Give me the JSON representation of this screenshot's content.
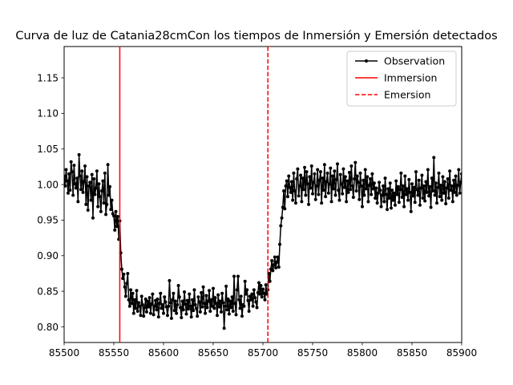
{
  "chart_data": {
    "type": "line",
    "title": "Curva de luz de Catania28cmCon los tiempos de Inmersión y Emersión detectados",
    "xlabel": "",
    "ylabel": "",
    "xlim": [
      85500,
      85900
    ],
    "ylim": [
      0.778,
      1.194
    ],
    "xticks": [
      "85500",
      "85550",
      "85600",
      "85650",
      "85700",
      "85750",
      "85800",
      "85850",
      "85900"
    ],
    "yticks": [
      "0.80",
      "0.85",
      "0.90",
      "0.95",
      "1.00",
      "1.05",
      "1.10",
      "1.15"
    ],
    "grid": false,
    "legend_position": "top-right",
    "series": [
      {
        "name": "Observation",
        "color": "#000000",
        "marker": "point",
        "x_start": 85500,
        "x_step": 1,
        "values": [
          1.012,
          0.998,
          1.021,
          1.005,
          0.988,
          1.015,
          0.992,
          1.032,
          1.018,
          0.985,
          1.027,
          1.001,
          0.995,
          1.009,
          0.976,
          1.042,
          1.012,
          0.993,
          1.019,
          0.989,
          1.004,
          1.026,
          0.972,
          1.011,
          0.964,
          0.998,
          1.003,
          0.978,
          1.014,
          0.953,
          1.008,
          0.986,
          0.995,
          1.019,
          0.969,
          1.001,
          0.983,
          0.962,
          0.991,
          1.005,
          0.974,
          1.016,
          0.958,
          0.972,
          1.028,
          0.985,
          0.997,
          0.965,
          0.978,
          0.959,
          0.956,
          0.936,
          0.962,
          0.941,
          0.955,
          0.923,
          0.949,
          0.904,
          0.881,
          0.868,
          0.874,
          0.856,
          0.843,
          0.861,
          0.875,
          0.838,
          0.829,
          0.852,
          0.833,
          0.847,
          0.819,
          0.838,
          0.826,
          0.851,
          0.822,
          0.834,
          0.829,
          0.816,
          0.843,
          0.831,
          0.815,
          0.827,
          0.839,
          0.821,
          0.836,
          0.828,
          0.841,
          0.819,
          0.832,
          0.846,
          0.817,
          0.829,
          0.837,
          0.824,
          0.839,
          0.814,
          0.833,
          0.847,
          0.826,
          0.831,
          0.819,
          0.842,
          0.835,
          0.828,
          0.816,
          0.829,
          0.865,
          0.834,
          0.812,
          0.838,
          0.847,
          0.823,
          0.836,
          0.819,
          0.831,
          0.858,
          0.842,
          0.827,
          0.813,
          0.836,
          0.824,
          0.849,
          0.832,
          0.818,
          0.837,
          0.825,
          0.846,
          0.829,
          0.814,
          0.838,
          0.823,
          0.852,
          0.831,
          0.826,
          0.815,
          0.842,
          0.835,
          0.821,
          0.848,
          0.828,
          0.856,
          0.833,
          0.819,
          0.844,
          0.827,
          0.836,
          0.851,
          0.822,
          0.838,
          0.829,
          0.854,
          0.826,
          0.841,
          0.833,
          0.816,
          0.845,
          0.828,
          0.836,
          0.821,
          0.847,
          0.834,
          0.798,
          0.829,
          0.857,
          0.824,
          0.839,
          0.818,
          0.836,
          0.827,
          0.842,
          0.822,
          0.871,
          0.833,
          0.817,
          0.852,
          0.871,
          0.838,
          0.826,
          0.843,
          0.815,
          0.831,
          0.829,
          0.864,
          0.846,
          0.852,
          0.837,
          0.822,
          0.843,
          0.838,
          0.846,
          0.829,
          0.852,
          0.841,
          0.835,
          0.827,
          0.848,
          0.862,
          0.846,
          0.858,
          0.842,
          0.853,
          0.847,
          0.838,
          0.859,
          0.846,
          0.852,
          0.875,
          0.864,
          0.881,
          0.893,
          0.879,
          0.887,
          0.898,
          0.883,
          0.891,
          0.898,
          0.884,
          0.916,
          0.942,
          0.953,
          0.968,
          0.991,
          0.966,
          0.998,
          1.005,
          0.983,
          1.012,
          0.996,
          0.989,
          1.004,
          0.978,
          1.016,
          0.991,
          0.974,
          1.008,
          1.022,
          0.984,
          0.998,
          1.013,
          0.976,
          1.009,
          0.993,
          1.024,
          0.985,
          1.018,
          1.001,
          0.972,
          1.011,
          0.995,
          1.026,
          0.987,
          1.003,
          1.015,
          0.979,
          0.998,
          1.021,
          0.986,
          1.006,
          1.018,
          0.974,
          1.009,
          0.992,
          1.028,
          0.983,
          1.004,
          1.016,
          0.988,
          1.001,
          1.023,
          0.976,
          1.012,
          0.994,
          1.019,
          0.985,
          1.007,
          1.029,
          0.992,
          0.978,
          1.014,
          1.001,
          0.987,
          1.022,
          0.996,
          1.011,
          0.976,
          1.005,
          0.989,
          1.017,
          0.993,
          1.026,
          0.998,
          0.982,
          1.008,
          1.031,
          0.991,
          1.012,
          1.003,
          0.979,
          1.016,
          0.998,
          0.969,
          1.006,
          0.985,
          1.021,
          0.994,
          1.011,
          0.976,
          0.999,
          1.008,
          0.986,
          1.015,
          0.994,
          1.002,
          0.981,
          0.995,
          0.974,
          0.988,
          1.003,
          0.992,
          0.969,
          0.985,
          0.998,
          0.976,
          1.009,
          0.986,
          0.965,
          0.994,
          0.981,
          1.002,
          0.967,
          0.992,
          0.978,
          0.988,
          0.971,
          1.005,
          0.986,
          0.997,
          0.975,
          0.993,
          1.016,
          0.982,
          0.998,
          0.969,
          1.012,
          0.986,
          0.994,
          0.978,
          1.007,
          0.989,
          0.962,
          1.001,
          0.984,
          0.996,
          0.975,
          1.018,
          0.993,
          0.985,
          1.006,
          0.971,
          0.995,
          1.013,
          0.981,
          0.998,
          0.977,
          1.004,
          0.989,
          1.021,
          0.984,
          0.997,
          0.968,
          1.009,
          0.991,
          1.038,
          0.985,
          1.002,
          0.974,
          0.996,
          1.016,
          0.983,
          0.999,
          0.978,
          1.011,
          0.988,
          1.004,
          0.973,
          0.995,
          1.008,
          0.981,
          1.019,
          0.992,
          0.998,
          0.976,
          1.006,
          0.989,
          1.012,
          0.985,
          0.999,
          1.021,
          0.988,
          1.003,
          1.015
        ]
      },
      {
        "name": "Immersion",
        "color": "#ff0000",
        "style": "solid",
        "x": 85556
      },
      {
        "name": "Emersion",
        "color": "#ff0000",
        "style": "dashed",
        "x": 85705
      }
    ]
  }
}
